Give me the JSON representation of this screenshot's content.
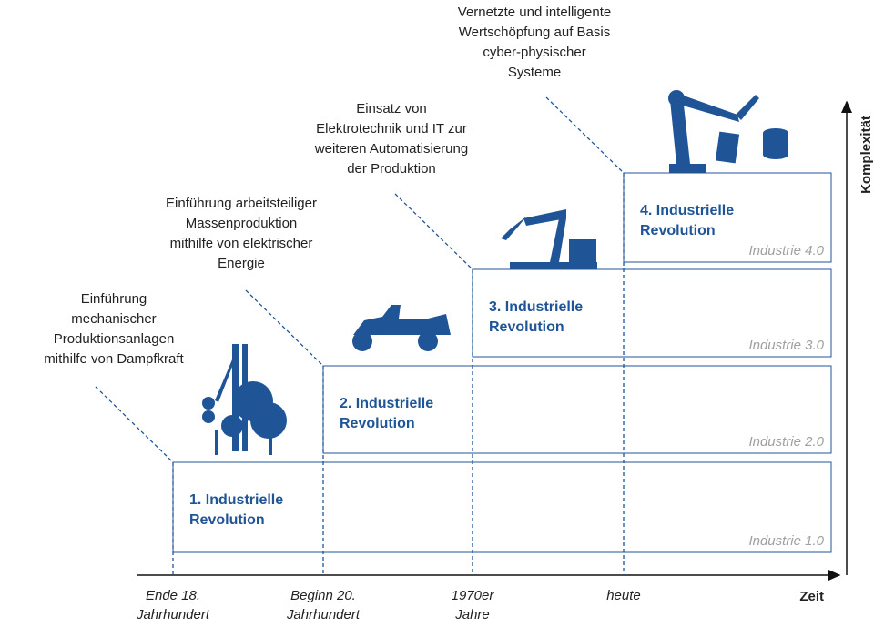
{
  "stages": [
    {
      "description": [
        "Einführung",
        "mechanischer",
        "Produktionsanlagen",
        "mithilfe von Dampfkraft"
      ],
      "title": [
        "1. Industrielle",
        "Revolution"
      ],
      "industry": "Industrie 1.0",
      "time": [
        "Ende 18.",
        "Jahrhundert"
      ]
    },
    {
      "description": [
        "Einführung arbeitsteiliger",
        "Massenproduktion",
        "mithilfe von elektrischer",
        "Energie"
      ],
      "title": [
        "2. Industrielle",
        "Revolution"
      ],
      "industry": "Industrie 2.0",
      "time": [
        "Beginn 20.",
        "Jahrhundert"
      ]
    },
    {
      "description": [
        "Einsatz von",
        "Elektrotechnik und IT zur",
        "weiteren Automatisierung",
        "der Produktion"
      ],
      "title": [
        "3. Industrielle",
        "Revolution"
      ],
      "industry": "Industrie 3.0",
      "time": [
        "1970er",
        "Jahre"
      ]
    },
    {
      "description": [
        "Vernetzte und intelligente",
        "Wertschöpfung auf Basis",
        "cyber-physischer",
        "Systeme"
      ],
      "title": [
        "4. Industrielle",
        "Revolution"
      ],
      "industry": "Industrie 4.0",
      "time": [
        "heute"
      ]
    }
  ],
  "axes": {
    "x": "Zeit",
    "y": "Komplexität"
  }
}
